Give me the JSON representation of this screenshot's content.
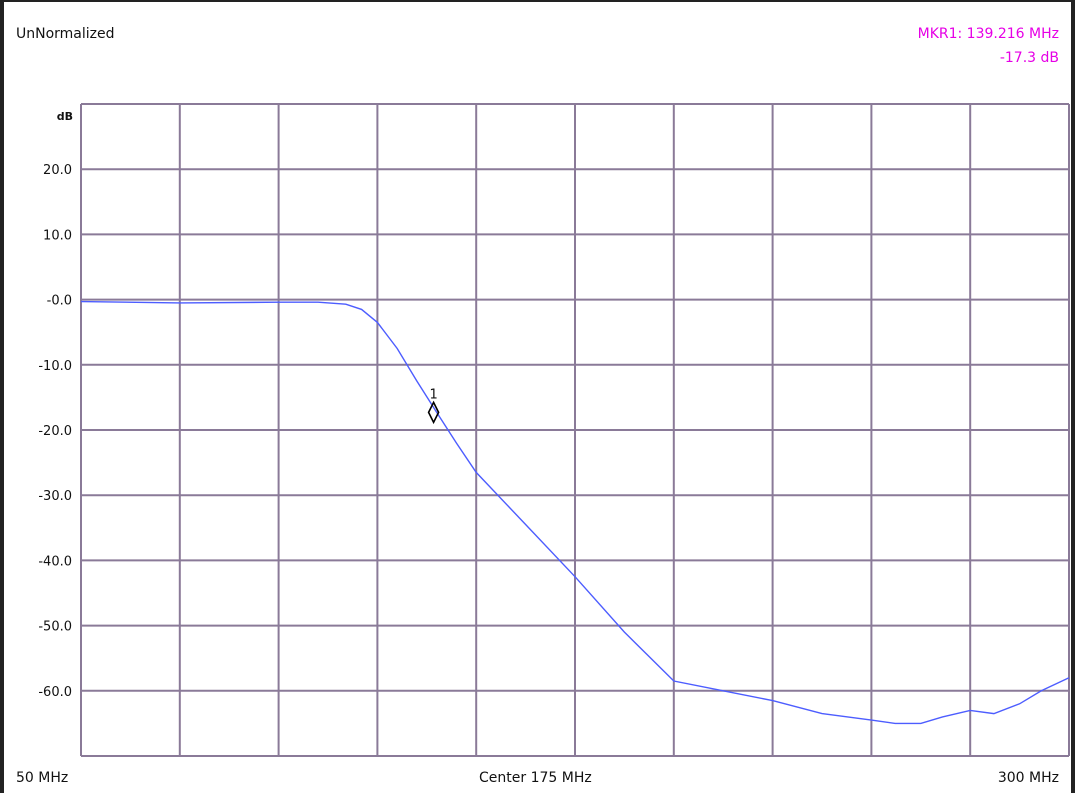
{
  "header": {
    "mode": "UnNormalized",
    "marker_freq": "MKR1: 139.216 MHz",
    "marker_amp": "-17.3 dB"
  },
  "footer": {
    "start": "50 MHz",
    "center": "Center 175 MHz",
    "stop": "300 MHz"
  },
  "colors": {
    "trace": "#4d5dff",
    "grid": "#8a7a98",
    "marker_text": "#e600e6"
  },
  "chart_data": {
    "type": "line",
    "ylabel": "dB",
    "xlim": [
      50,
      300
    ],
    "ylim": [
      -70,
      30
    ],
    "x_unit": "MHz",
    "y_ticks": [
      20,
      10,
      0,
      -10,
      -20,
      -30,
      -40,
      -50,
      -60
    ],
    "y_tick_labels": [
      "20.0",
      "10.0",
      "-0.0",
      "-10.0",
      "-20.0",
      "-30.0",
      "-40.0",
      "-50.0",
      "-60.0"
    ],
    "x_divisions": 10,
    "grid": true,
    "series": [
      {
        "x": [
          50,
          75,
          100,
          110,
          117,
          121,
          125,
          130,
          135,
          140,
          145,
          150,
          162.5,
          175,
          187.5,
          200,
          212.5,
          225,
          237.5,
          250,
          256,
          262.5,
          268,
          275,
          281,
          287.5,
          293,
          300
        ],
        "y": [
          -0.3,
          -0.5,
          -0.4,
          -0.4,
          -0.7,
          -1.5,
          -3.5,
          -7.5,
          -12.5,
          -17.3,
          -22,
          -26.5,
          -34.5,
          -42.5,
          -51,
          -58.5,
          -60,
          -61.5,
          -63.5,
          -64.5,
          -65,
          -65,
          -64,
          -63,
          -63.5,
          -62,
          -60,
          -58
        ]
      }
    ],
    "marker": {
      "label": "1",
      "x": 139.216,
      "y": -17.3
    }
  }
}
